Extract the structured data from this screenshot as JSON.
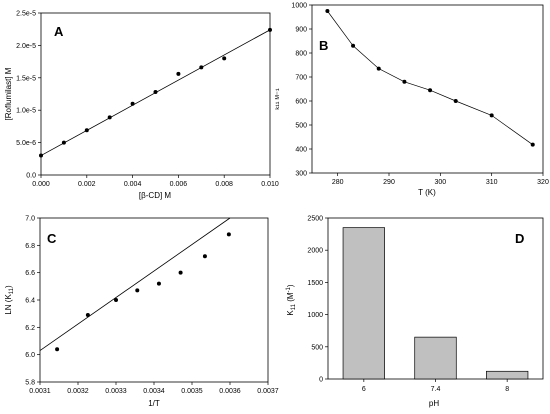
{
  "chart_data": [
    {
      "panel": "A",
      "type": "scatter",
      "xlabel": "[β-CD] M",
      "ylabel": "[Roflumilast] M",
      "xlim": [
        0,
        0.01
      ],
      "ylim": [
        0,
        2.5e-05
      ],
      "x_ticks": [
        "0.000",
        "0.002",
        "0.004",
        "0.006",
        "0.008",
        "0.010"
      ],
      "y_ticks": [
        "0.0",
        "5.0e-6",
        "1.0e-5",
        "1.5e-5",
        "2.0e-5",
        "2.5e-5"
      ],
      "x_tick_values": [
        0,
        0.002,
        0.004,
        0.006,
        0.008,
        0.01
      ],
      "y_tick_values": [
        0,
        5e-06,
        1e-05,
        1.5e-05,
        2e-05,
        2.5e-05
      ],
      "x": [
        0,
        0.001,
        0.002,
        0.003,
        0.004,
        0.005,
        0.006,
        0.007,
        0.008,
        0.01
      ],
      "y": [
        3e-06,
        5e-06,
        6.9e-06,
        8.9e-06,
        1.1e-05,
        1.28e-05,
        1.56e-05,
        1.66e-05,
        1.8e-05,
        2.24e-05
      ],
      "fit": {
        "x": [
          0,
          0.01
        ],
        "y": [
          3e-06,
          2.24e-05
        ]
      },
      "grid": false
    },
    {
      "panel": "B",
      "type": "line",
      "xlabel": "T (K)",
      "ylabel": "",
      "xlim": [
        275,
        320
      ],
      "ylim": [
        300,
        1000
      ],
      "x_ticks": [
        "280",
        "290",
        "300",
        "310",
        "320"
      ],
      "y_ticks": [
        "300",
        "400",
        "500",
        "600",
        "700",
        "800",
        "900",
        "1000"
      ],
      "x_tick_values": [
        280,
        290,
        300,
        310,
        320
      ],
      "y_tick_values": [
        300,
        400,
        500,
        600,
        700,
        800,
        900,
        1000
      ],
      "x": [
        278,
        283,
        288,
        293,
        298,
        303,
        310,
        318
      ],
      "y": [
        975,
        830,
        735,
        680,
        645,
        600,
        540,
        418
      ],
      "grid": false
    },
    {
      "panel": "C",
      "type": "scatter",
      "xlabel": "1/T",
      "ylabel": "LN (K11)",
      "xlim": [
        0.0031,
        0.0037
      ],
      "ylim": [
        5.8,
        7.0
      ],
      "x_ticks": [
        "0.0031",
        "0.0032",
        "0.0033",
        "0.0034",
        "0.0035",
        "0.0036",
        "0.0037"
      ],
      "y_ticks": [
        "5.8",
        "6.0",
        "6.2",
        "6.4",
        "6.6",
        "6.8",
        "7.0"
      ],
      "x_tick_values": [
        0.0031,
        0.0032,
        0.0033,
        0.0034,
        0.0035,
        0.0036,
        0.0037
      ],
      "y_tick_values": [
        5.8,
        6.0,
        6.2,
        6.4,
        6.6,
        6.8,
        7.0
      ],
      "x": [
        0.003145,
        0.003226,
        0.0033,
        0.003356,
        0.003413,
        0.00347,
        0.003534,
        0.003597
      ],
      "y": [
        6.04,
        6.29,
        6.4,
        6.47,
        6.52,
        6.6,
        6.72,
        6.88
      ],
      "fit": {
        "x": [
          0.0031,
          0.0036
        ],
        "y": [
          6.03,
          7.0
        ]
      },
      "grid": false
    },
    {
      "panel": "D",
      "type": "bar",
      "xlabel": "pH",
      "ylabel": "K11 (M-1)",
      "categories": [
        "6",
        "7.4",
        "8"
      ],
      "values": [
        2350,
        650,
        120
      ],
      "ylim": [
        0,
        2500
      ],
      "y_ticks": [
        "0",
        "500",
        "1000",
        "1500",
        "2000",
        "2500"
      ],
      "y_tick_values": [
        0,
        500,
        1000,
        1500,
        2000,
        2500
      ],
      "bar_color": "#c0c0c0",
      "grid": false
    }
  ],
  "panels": {
    "a": {
      "letter": "A",
      "xlabel": "[β-CD] M",
      "ylabel": "[Roflumilast] M"
    },
    "b": {
      "letter": "B",
      "xlabel": "T (K)",
      "ylabel_partial": "ᵏ¹¹ ᴹ⁻¹"
    },
    "c": {
      "letter": "C",
      "xlabel": "1/T",
      "ylabel_main": "LN (K",
      "ylabel_sub": "11",
      "ylabel_close": ")"
    },
    "d": {
      "letter": "D",
      "xlabel": "pH",
      "ylabel_main": "K",
      "ylabel_sub": "11",
      "ylabel_mid": " (M",
      "ylabel_sup": "-1",
      "ylabel_close": ")"
    }
  }
}
